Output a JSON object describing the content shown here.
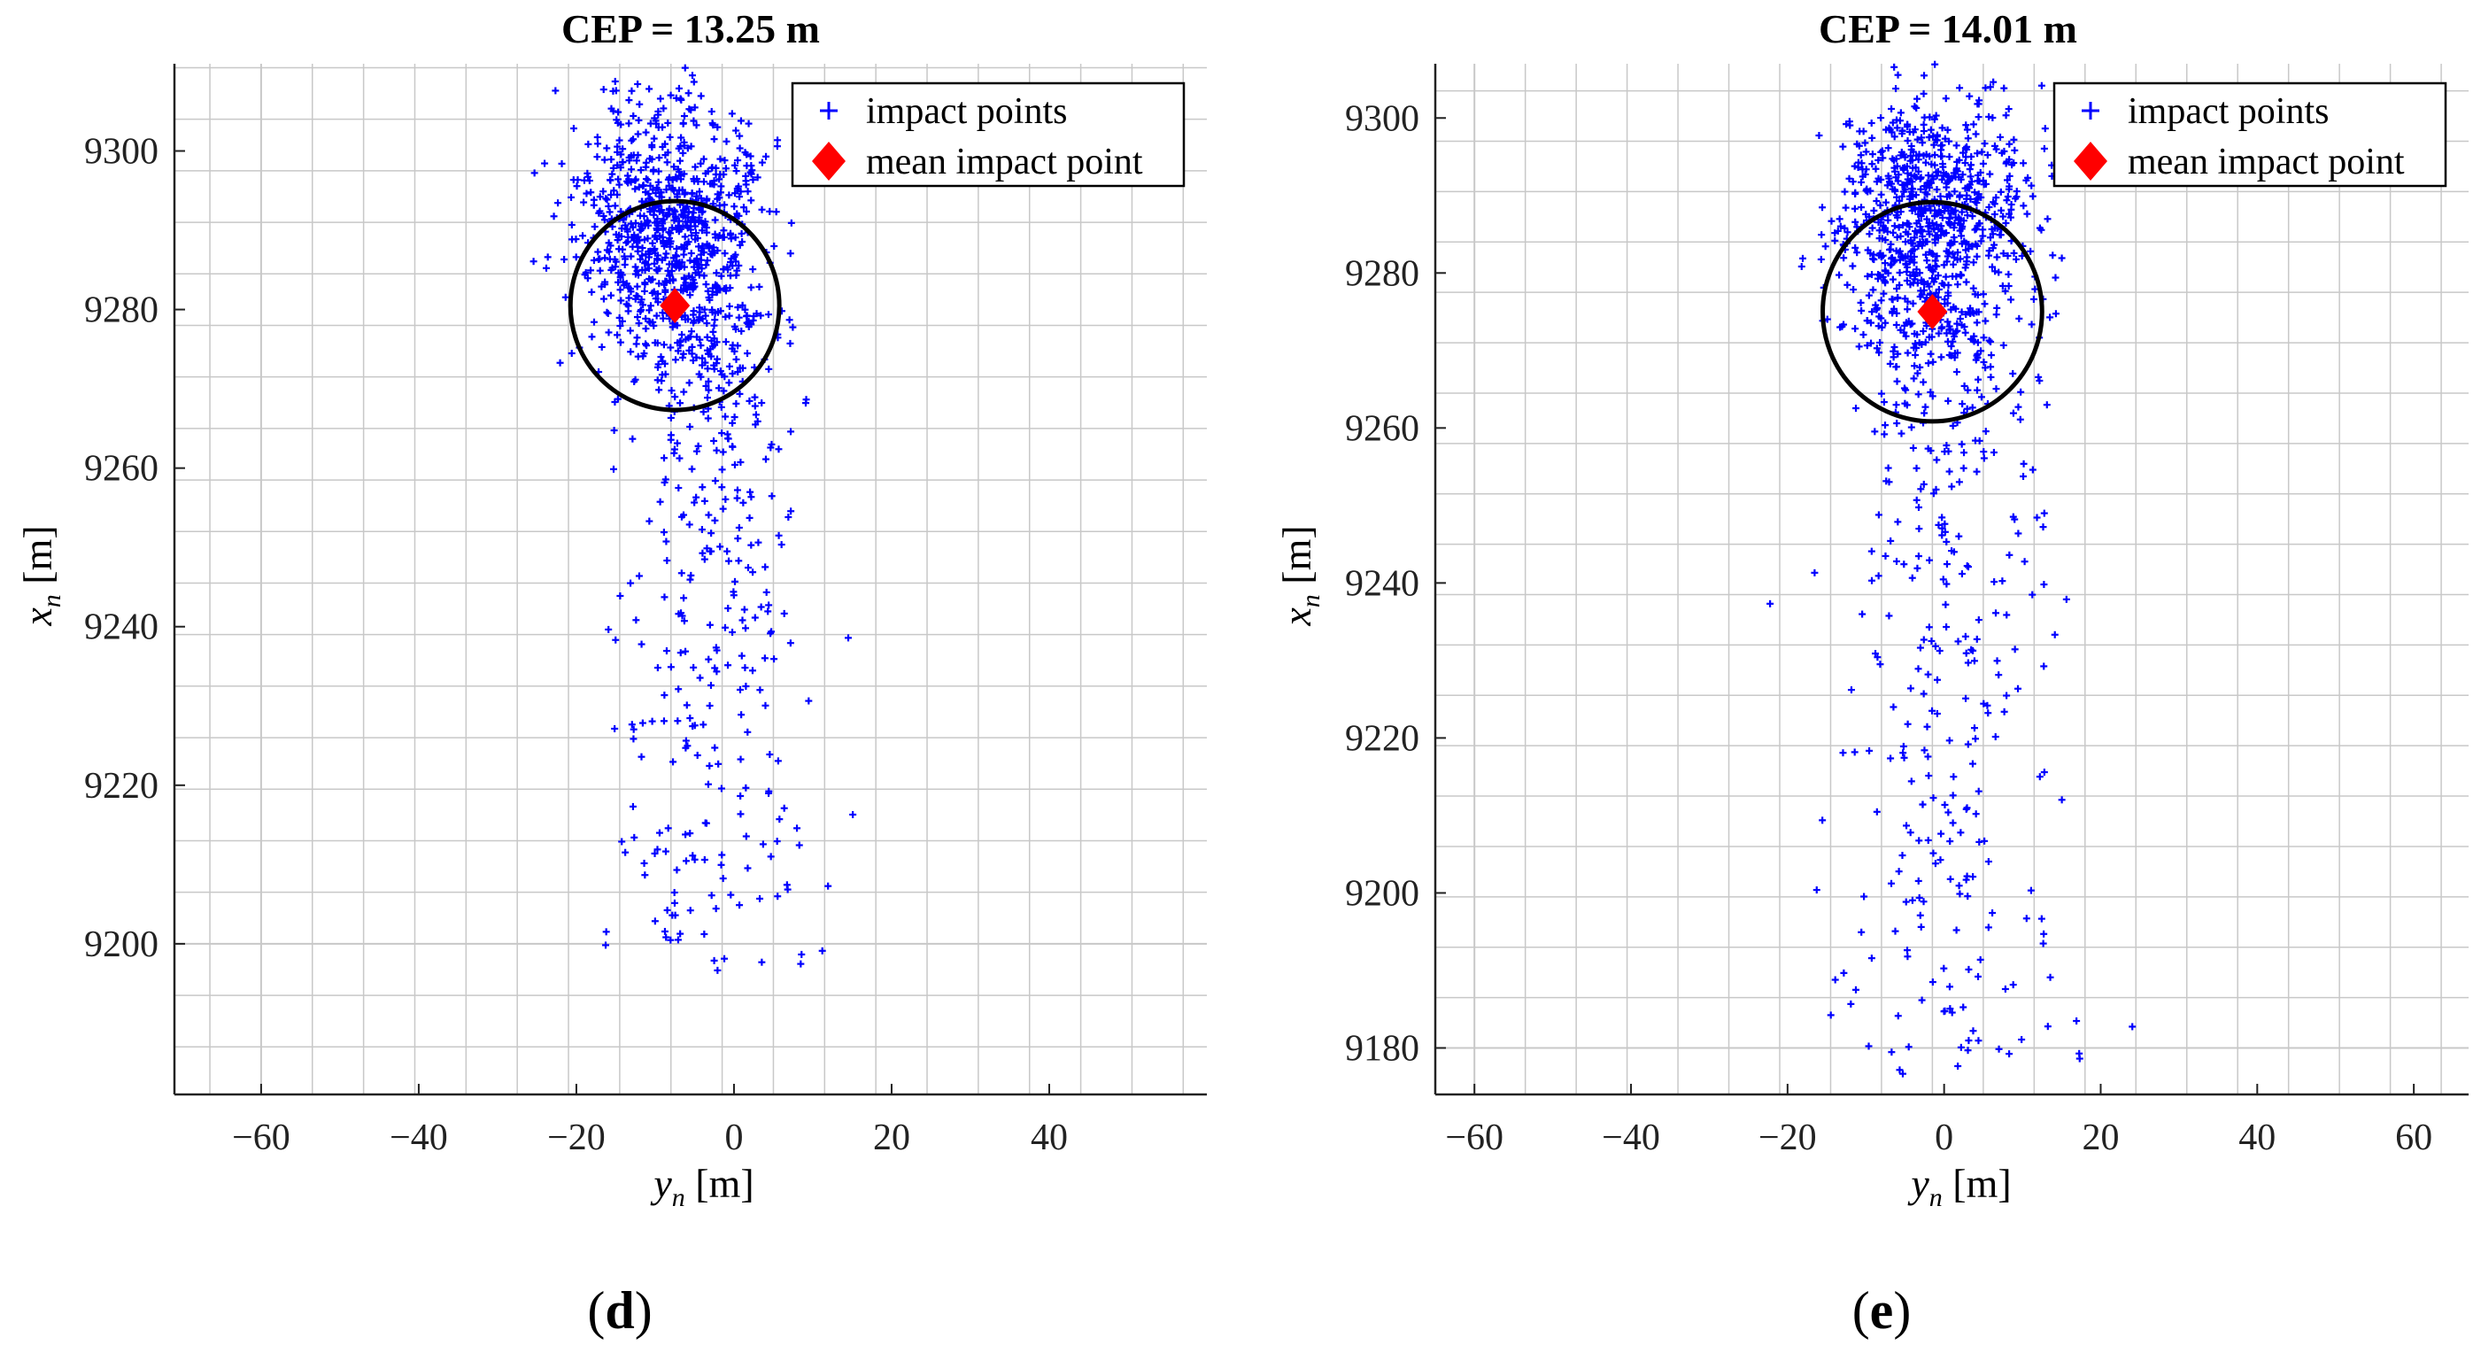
{
  "colors": {
    "impact": "#0000ff",
    "mean": "#ff0000",
    "circle": "#000000",
    "grid": "#c8c8c8",
    "axis": "#222222"
  },
  "chart_data": [
    {
      "type": "scatter",
      "panel": "(d)",
      "panel_prefix": "(",
      "panel_letter": "d",
      "panel_suffix": ")",
      "title": "CEP = 13.25 m",
      "xlabel_var": "y",
      "xlabel_sub": "n",
      "xlabel_unit": " [m]",
      "ylabel_var": "x",
      "ylabel_sub": "n",
      "ylabel_unit": " [m]",
      "xlim": [
        -71,
        60
      ],
      "ylim": [
        9181,
        9311
      ],
      "xticks": [
        -60,
        -40,
        -20,
        0,
        20,
        40
      ],
      "xtick_labels": [
        "−60",
        "−40",
        "−20",
        "0",
        "20",
        "40"
      ],
      "yticks": [
        9200,
        9220,
        9240,
        9260,
        9280,
        9300
      ],
      "ytick_labels": [
        "9200",
        "9220",
        "9240",
        "9260",
        "9280",
        "9300"
      ],
      "grid": true,
      "grid_step_x": 6.5,
      "grid_step_y": 6.5,
      "legend_location": "top-right",
      "legend": [
        "impact points",
        "mean impact point"
      ],
      "mean_impact_point": {
        "y": -7.5,
        "x": 9280.5
      },
      "cep_radius": 13.25,
      "series": {
        "name": "impact points",
        "seed": 13,
        "count": 1200,
        "core": {
          "cy": -8,
          "cx": 9290,
          "sy": 6,
          "sx": 8,
          "fraction": 0.7
        },
        "tail": {
          "cy": -3,
          "ymin": 9196,
          "ymax": 9280,
          "sy": 5,
          "fraction": 0.3
        }
      }
    },
    {
      "type": "scatter",
      "panel": "(e)",
      "panel_prefix": "(",
      "panel_letter": "e",
      "panel_suffix": ")",
      "title": "CEP = 14.01 m",
      "xlabel_var": "y",
      "xlabel_sub": "n",
      "xlabel_unit": " [m]",
      "ylabel_var": "x",
      "ylabel_sub": "n",
      "ylabel_unit": " [m]",
      "xlim": [
        -65,
        67
      ],
      "ylim": [
        9174,
        9307
      ],
      "xticks": [
        -60,
        -40,
        -20,
        0,
        20,
        40,
        60
      ],
      "xtick_labels": [
        "−60",
        "−40",
        "−20",
        "0",
        "20",
        "40",
        "60"
      ],
      "yticks": [
        9180,
        9200,
        9220,
        9240,
        9260,
        9280,
        9300
      ],
      "ytick_labels": [
        "9180",
        "9200",
        "9220",
        "9240",
        "9260",
        "9280",
        "9300"
      ],
      "grid": true,
      "grid_step_x": 6.5,
      "grid_step_y": 6.5,
      "legend_location": "top-right",
      "legend": [
        "impact points",
        "mean impact point"
      ],
      "mean_impact_point": {
        "y": -1.5,
        "x": 9275
      },
      "cep_radius": 14.01,
      "series": {
        "name": "impact points",
        "seed": 29,
        "count": 1200,
        "core": {
          "cy": -2,
          "cx": 9287,
          "sy": 6,
          "sx": 8,
          "fraction": 0.7
        },
        "tail": {
          "cy": 0,
          "ymin": 9175,
          "ymax": 9275,
          "sy": 6,
          "fraction": 0.3
        }
      }
    }
  ]
}
